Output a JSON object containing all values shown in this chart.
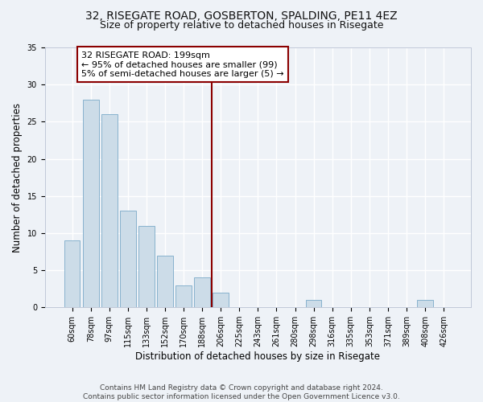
{
  "title1": "32, RISEGATE ROAD, GOSBERTON, SPALDING, PE11 4EZ",
  "title2": "Size of property relative to detached houses in Risegate",
  "xlabel": "Distribution of detached houses by size in Risegate",
  "ylabel": "Number of detached properties",
  "categories": [
    "60sqm",
    "78sqm",
    "97sqm",
    "115sqm",
    "133sqm",
    "152sqm",
    "170sqm",
    "188sqm",
    "206sqm",
    "225sqm",
    "243sqm",
    "261sqm",
    "280sqm",
    "298sqm",
    "316sqm",
    "335sqm",
    "353sqm",
    "371sqm",
    "389sqm",
    "408sqm",
    "426sqm"
  ],
  "values": [
    9,
    28,
    26,
    13,
    11,
    7,
    3,
    4,
    2,
    0,
    0,
    0,
    0,
    1,
    0,
    0,
    0,
    0,
    0,
    1,
    0
  ],
  "bar_color": "#ccdce8",
  "bar_edge_color": "#7aaac8",
  "vline_x": 8.0,
  "vline_color": "#8b0000",
  "annotation_text": "32 RISEGATE ROAD: 199sqm\n← 95% of detached houses are smaller (99)\n5% of semi-detached houses are larger (5) →",
  "annotation_box_color": "#ffffff",
  "annotation_box_edge_color": "#8b0000",
  "ylim": [
    0,
    35
  ],
  "yticks": [
    0,
    5,
    10,
    15,
    20,
    25,
    30,
    35
  ],
  "footer": "Contains HM Land Registry data © Crown copyright and database right 2024.\nContains public sector information licensed under the Open Government Licence v3.0.",
  "background_color": "#eef2f7",
  "grid_color": "#ffffff",
  "title1_fontsize": 10,
  "title2_fontsize": 9,
  "annotation_fontsize": 8,
  "xlabel_fontsize": 8.5,
  "ylabel_fontsize": 8.5,
  "tick_fontsize": 7,
  "footer_fontsize": 6.5
}
